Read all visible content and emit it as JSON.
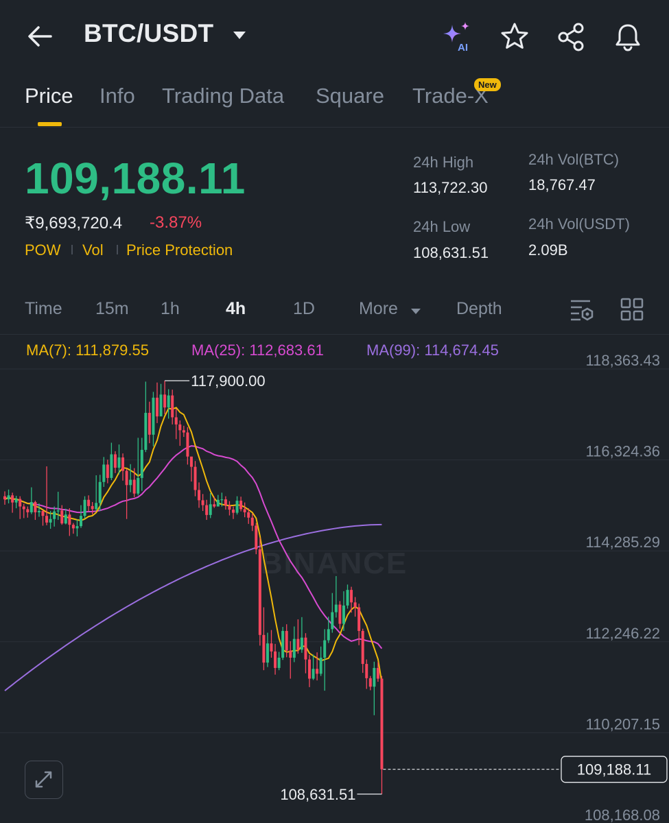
{
  "header": {
    "pair": "BTC/USDT",
    "icons": [
      "back-arrow-icon",
      "chevron-down-icon",
      "ai-sparkle-icon",
      "star-icon",
      "share-icon",
      "bell-icon"
    ],
    "ai_label": "AI"
  },
  "tabs": [
    {
      "label": "Price",
      "active": true
    },
    {
      "label": "Info",
      "active": false
    },
    {
      "label": "Trading Data",
      "active": false
    },
    {
      "label": "Square",
      "active": false
    },
    {
      "label": "Trade-X",
      "active": false,
      "badge": "New"
    }
  ],
  "ticker": {
    "last_price": "109,188.11",
    "inr_price": "₹9,693,720.4",
    "change_pct": "-3.87%",
    "tags": [
      "POW",
      "Vol",
      "Price Protection"
    ],
    "stats": {
      "high_label": "24h High",
      "high": "113,722.30",
      "low_label": "24h Low",
      "low": "108,631.51",
      "vol_btc_label": "24h Vol(BTC)",
      "vol_btc": "18,767.47",
      "vol_usdt_label": "24h Vol(USDT)",
      "vol_usdt": "2.09B"
    }
  },
  "intervals": {
    "items": [
      "Time",
      "15m",
      "1h",
      "4h",
      "1D",
      "More",
      "Depth"
    ],
    "active": "4h"
  },
  "chart_data": {
    "type": "candlestick",
    "interval": "4h",
    "ma_legend": {
      "ma7": "MA(7): 111,879.55",
      "ma25": "MA(25): 112,683.61",
      "ma99": "MA(99): 114,674.45"
    },
    "ma_colors": {
      "ma7": "#f0b90b",
      "ma25": "#d84bd1",
      "ma99": "#9b6fe0"
    },
    "colors": {
      "up": "#2ebd85",
      "down": "#f6465d"
    },
    "y_ticks": [
      "118,363.43",
      "116,324.36",
      "114,285.29",
      "112,246.22",
      "110,207.15",
      "108,168.08"
    ],
    "y_tick_values": [
      118363.43,
      116324.36,
      114285.29,
      112246.22,
      110207.15,
      108168.08
    ],
    "high_marker": {
      "label": "117,900.00",
      "value": 117900.0
    },
    "low_marker": {
      "label": "108,631.51",
      "value": 108631.51
    },
    "last_price": {
      "label": "109,188.11",
      "value": 109188.11
    },
    "watermark": "BINANCE",
    "candles": [
      [
        115310,
        115240,
        115420,
        115120
      ],
      [
        115240,
        115330,
        115460,
        115150
      ],
      [
        115330,
        115170,
        115390,
        114940
      ],
      [
        115170,
        115250,
        115320,
        115040
      ],
      [
        115250,
        115080,
        115310,
        114800
      ],
      [
        115080,
        115020,
        115140,
        114820
      ],
      [
        115020,
        114950,
        115080,
        114830
      ],
      [
        114950,
        115180,
        115510,
        114910
      ],
      [
        115180,
        114950,
        115210,
        114780
      ],
      [
        114950,
        114980,
        115150,
        114850
      ],
      [
        114980,
        114870,
        115000,
        114650
      ],
      [
        114870,
        114720,
        115980,
        114660
      ],
      [
        114720,
        114800,
        114980,
        114580
      ],
      [
        114800,
        114970,
        115080,
        114630
      ],
      [
        114970,
        114990,
        115410,
        114780
      ],
      [
        114990,
        114700,
        115110,
        114670
      ],
      [
        114700,
        114900,
        115030,
        114680
      ],
      [
        114900,
        114670,
        115040,
        114420
      ],
      [
        114670,
        114590,
        114710,
        114470
      ],
      [
        114590,
        114640,
        114790,
        114410
      ],
      [
        114640,
        114870,
        115110,
        114600
      ],
      [
        114870,
        115230,
        115310,
        114810
      ],
      [
        115230,
        115090,
        115330,
        114970
      ],
      [
        115090,
        115020,
        115180,
        114900
      ],
      [
        115020,
        115160,
        115780,
        114990
      ],
      [
        115160,
        115630,
        115790,
        114980
      ],
      [
        115630,
        116020,
        116190,
        115520
      ],
      [
        116020,
        115720,
        116130,
        115600
      ],
      [
        115720,
        116250,
        116510,
        115670
      ],
      [
        116250,
        115950,
        116320,
        115830
      ],
      [
        115950,
        116180,
        116470,
        115800
      ],
      [
        116180,
        115880,
        116270,
        115660
      ],
      [
        115880,
        115560,
        115920,
        114800
      ],
      [
        115560,
        115680,
        116030,
        115400
      ],
      [
        115680,
        115370,
        115940,
        115290
      ],
      [
        115370,
        115720,
        116620,
        115330
      ],
      [
        115720,
        116350,
        116620,
        115430
      ],
      [
        116350,
        117180,
        117880,
        116300
      ],
      [
        117180,
        116690,
        117430,
        116500
      ],
      [
        116690,
        117520,
        117650,
        116430
      ],
      [
        117520,
        117100,
        117860,
        116950
      ],
      [
        117100,
        117590,
        117830,
        117350
      ],
      [
        117590,
        117300,
        117900,
        117150
      ],
      [
        117300,
        117570,
        117710,
        117050
      ],
      [
        117570,
        117080,
        117700,
        116920
      ],
      [
        117080,
        116920,
        117270,
        116590
      ],
      [
        116920,
        116790,
        117010,
        116440
      ],
      [
        116790,
        116740,
        116890,
        116640
      ],
      [
        116740,
        116200,
        116860,
        116020
      ],
      [
        116200,
        115970,
        116100,
        115640
      ],
      [
        115970,
        115450,
        116100,
        115310
      ],
      [
        115450,
        115220,
        115620,
        115050
      ],
      [
        115220,
        115110,
        115360,
        114980
      ],
      [
        115110,
        114890,
        115230,
        114780
      ],
      [
        114890,
        115130,
        115380,
        114820
      ],
      [
        115130,
        115080,
        115300,
        115050
      ],
      [
        115080,
        115230,
        115340,
        115140
      ],
      [
        115230,
        115240,
        115390,
        115080
      ],
      [
        115240,
        115100,
        115310,
        115010
      ],
      [
        115100,
        115010,
        115200,
        114880
      ],
      [
        115010,
        114940,
        115080,
        114800
      ],
      [
        114940,
        115210,
        115310,
        114900
      ],
      [
        115210,
        115020,
        115300,
        114970
      ],
      [
        115020,
        114950,
        115170,
        114840
      ],
      [
        114950,
        114830,
        115040,
        114690
      ],
      [
        114830,
        114650,
        114920,
        114530
      ],
      [
        114650,
        114120,
        114710,
        114010
      ],
      [
        114120,
        112200,
        114380,
        111960
      ],
      [
        112200,
        111580,
        112820,
        111410
      ],
      [
        111580,
        112010,
        112250,
        111480
      ],
      [
        112010,
        111830,
        112310,
        111690
      ],
      [
        111830,
        111460,
        112000,
        111310
      ],
      [
        111460,
        111690,
        111820,
        111410
      ],
      [
        111690,
        112290,
        112380,
        111640
      ],
      [
        112290,
        111850,
        112440,
        111700
      ],
      [
        111850,
        111690,
        112060,
        111220
      ],
      [
        111690,
        112110,
        112390,
        111590
      ],
      [
        112110,
        111870,
        112550,
        111780
      ],
      [
        111870,
        112140,
        112600,
        111800
      ],
      [
        112140,
        111650,
        112240,
        111340
      ],
      [
        111650,
        111220,
        111750,
        111030
      ],
      [
        111220,
        111440,
        111760,
        111190
      ],
      [
        111440,
        111330,
        111810,
        111180
      ],
      [
        111330,
        111690,
        111940,
        111280
      ],
      [
        111690,
        112080,
        112330,
        110950
      ],
      [
        112080,
        112330,
        112610,
        112020
      ],
      [
        112330,
        112710,
        113140,
        112250
      ],
      [
        112710,
        112880,
        113520,
        112590
      ],
      [
        112880,
        112450,
        112960,
        112340
      ],
      [
        112450,
        112860,
        113180,
        112290
      ],
      [
        112860,
        113210,
        113330,
        112790
      ],
      [
        113210,
        112930,
        113280,
        112700
      ],
      [
        112930,
        112820,
        113050,
        112610
      ],
      [
        112820,
        112290,
        112900,
        111970
      ],
      [
        112290,
        111550,
        112340,
        111350
      ],
      [
        111550,
        111230,
        111650,
        110990
      ],
      [
        111230,
        111040,
        111280,
        110960
      ],
      [
        111040,
        111460,
        111600,
        110400
      ],
      [
        111460,
        111220,
        111590,
        111150
      ],
      [
        111220,
        109188.11,
        111280,
        108631.51
      ]
    ]
  }
}
